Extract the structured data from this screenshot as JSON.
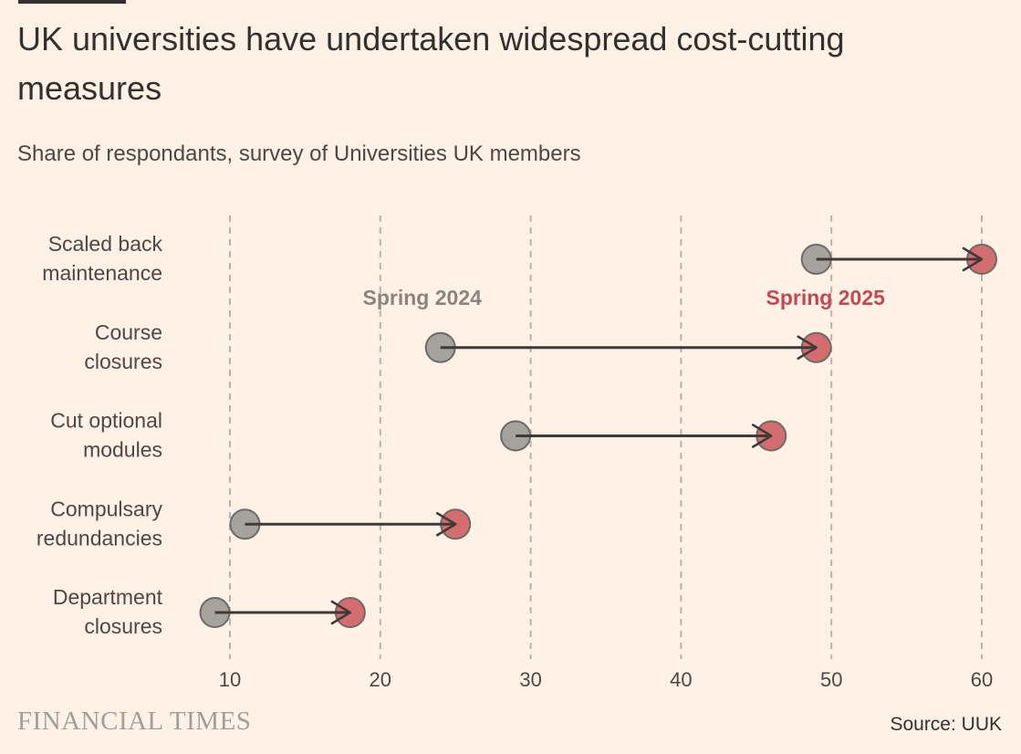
{
  "header": {
    "title": "UK universities have undertaken widespread cost-cutting measures",
    "subtitle": "Share of respondants, survey of Universities UK members"
  },
  "footer": {
    "logo_text": "FINANCIAL TIMES",
    "source": "Source: UUK"
  },
  "colors": {
    "background": "#fff1e5",
    "spring_2024": "#a6a29e",
    "spring_2025": "#d36d6f",
    "spring_2025_label": "#c14a52",
    "arrow": "#3e3a38",
    "grid": "#b8b2ad"
  },
  "chart_data": {
    "type": "dumbbell",
    "title": "UK universities have undertaken widespread cost-cutting measures",
    "subtitle": "Share of respondants, survey of Universities UK members",
    "xlabel": "",
    "ylabel": "",
    "xlim": [
      10,
      60
    ],
    "xticks": [
      10,
      20,
      30,
      40,
      50,
      60
    ],
    "grid": true,
    "categories": [
      [
        "Scaled back",
        "maintenance"
      ],
      [
        "Course",
        "closures"
      ],
      [
        "Cut optional",
        "modules"
      ],
      [
        "Compulsary",
        "redundancies"
      ],
      [
        "Department",
        "closures"
      ]
    ],
    "series": [
      {
        "name": "Spring 2024",
        "values": [
          49,
          24,
          29,
          11,
          9
        ]
      },
      {
        "name": "Spring 2025",
        "values": [
          60,
          49,
          46,
          25,
          18
        ]
      }
    ],
    "annotations": [
      {
        "text": "Spring 2024",
        "series": 0
      },
      {
        "text": "Spring 2025",
        "series": 1
      }
    ]
  }
}
